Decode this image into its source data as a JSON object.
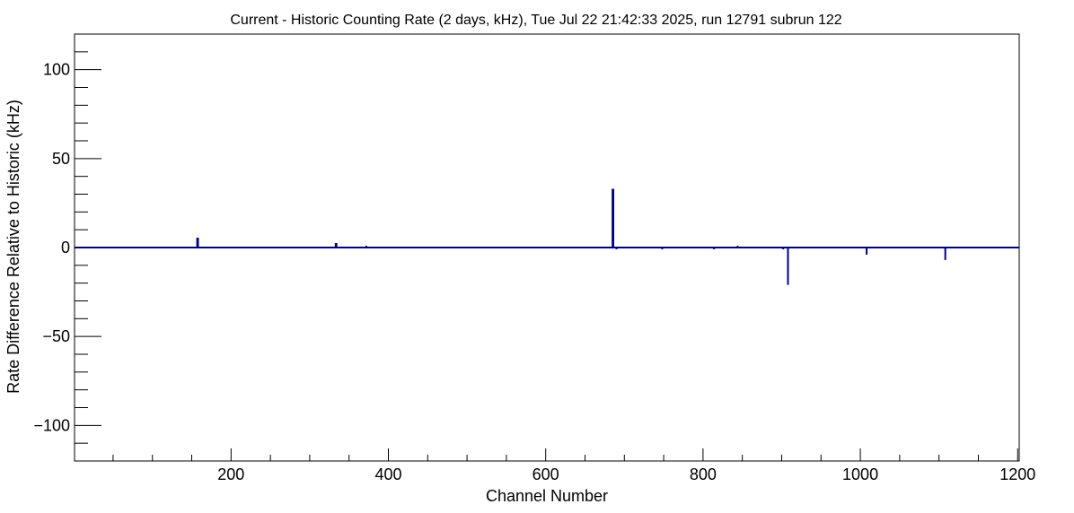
{
  "chart_data": {
    "type": "bar",
    "title": "Current - Historic Counting Rate (2 days, kHz), Tue Jul 22 21:42:33 2025, run 12791 subrun 122",
    "xlabel": "Channel Number",
    "ylabel": "Rate Difference Relative to Historic (kHz)",
    "xlim": [
      1,
      1202
    ],
    "ylim": [
      -120,
      120
    ],
    "x_major_ticks": [
      200,
      400,
      600,
      800,
      1000,
      1200
    ],
    "x_tick_labels": [
      "200",
      "400",
      "600",
      "800",
      "1000",
      "1200"
    ],
    "y_major_ticks": [
      -100,
      -50,
      0,
      50,
      100
    ],
    "y_tick_labels": [
      "−100",
      "−50",
      "0",
      "50",
      "100"
    ],
    "grid": false,
    "legend": "none",
    "colors": {
      "series": "#000080"
    },
    "series": [
      {
        "x": [
          5,
          36,
          40,
          44,
          48,
          56,
          60,
          68,
          73,
          80,
          90,
          93,
          100,
          108,
          112,
          117,
          120,
          126,
          145,
          149,
          157,
          158,
          162,
          166,
          170,
          173,
          178,
          182,
          196,
          200,
          212,
          216,
          222,
          230,
          238,
          246,
          258,
          262,
          292,
          300,
          308,
          316,
          320,
          333,
          334,
          339,
          343,
          348,
          352,
          356,
          360,
          365,
          372,
          375,
          379,
          384,
          388,
          391,
          396,
          402,
          410,
          418,
          426,
          445,
          455,
          462,
          470,
          478,
          492,
          496,
          512,
          520,
          528,
          536,
          542,
          550,
          556,
          566,
          576,
          584,
          598,
          608,
          612,
          628,
          632,
          650,
          660,
          664,
          670,
          685,
          686,
          690,
          694,
          698,
          702,
          706,
          710,
          714,
          722,
          730,
          748,
          762,
          770,
          775,
          778,
          785,
          790,
          795,
          800,
          810,
          814,
          818,
          826,
          832,
          838,
          844,
          848,
          856,
          862,
          882,
          902,
          908,
          918,
          922,
          930,
          938,
          946,
          954,
          962,
          1008,
          1012,
          1018,
          1036,
          1044,
          1050,
          1062,
          1072,
          1076,
          1080,
          1094,
          1108,
          1130,
          1138,
          1146,
          1160,
          1168,
          1172,
          1186,
          1200
        ],
        "values": [
          0.5,
          0.5,
          0.5,
          0.5,
          0.5,
          0.5,
          0.5,
          0.5,
          0.5,
          0.5,
          0.5,
          0.5,
          0.5,
          0.5,
          0.5,
          0.5,
          0.5,
          0.5,
          0.5,
          0.5,
          5.5,
          5.5,
          0.5,
          0.5,
          0.5,
          0.5,
          0.5,
          0.5,
          0.5,
          0.5,
          0.5,
          0.5,
          0.5,
          0.5,
          0.5,
          0.5,
          0.5,
          0.5,
          0.5,
          0.5,
          0.5,
          0.5,
          0.5,
          2.5,
          2.5,
          0.5,
          0.5,
          0.5,
          0.5,
          0.5,
          0.5,
          0.5,
          1.0,
          0.5,
          0.5,
          0.5,
          0.5,
          0.5,
          0.5,
          0.5,
          0.5,
          0.5,
          0.5,
          0.5,
          0.5,
          0.5,
          0.5,
          0.5,
          0.5,
          0.5,
          0.5,
          0.5,
          0.5,
          0.5,
          0.5,
          -0.5,
          0.5,
          0.5,
          0.5,
          0.5,
          0.5,
          0.5,
          0.5,
          0.5,
          0.5,
          0.5,
          0.5,
          0.5,
          0.5,
          33.0,
          33.0,
          -1.0,
          0.5,
          -0.5,
          0.5,
          0.5,
          0.5,
          0.5,
          0.5,
          0.5,
          -1.0,
          0.5,
          0.5,
          0.5,
          0.5,
          0.5,
          0.5,
          0.5,
          0.5,
          0.5,
          -1.0,
          0.5,
          0.5,
          0.5,
          0.5,
          1.0,
          0.5,
          0.5,
          0.5,
          0.5,
          -1.0,
          -21.0,
          0.5,
          0.5,
          0.5,
          0.5,
          0.5,
          0.5,
          0.5,
          -4.0,
          0.5,
          0.5,
          0.5,
          0.5,
          0.5,
          0.5,
          0.5,
          -0.5,
          0.5,
          0.5,
          -7.0,
          0.5,
          0.5,
          0.5,
          0.5,
          0.5,
          0.5,
          0.5,
          0.5
        ]
      }
    ]
  }
}
